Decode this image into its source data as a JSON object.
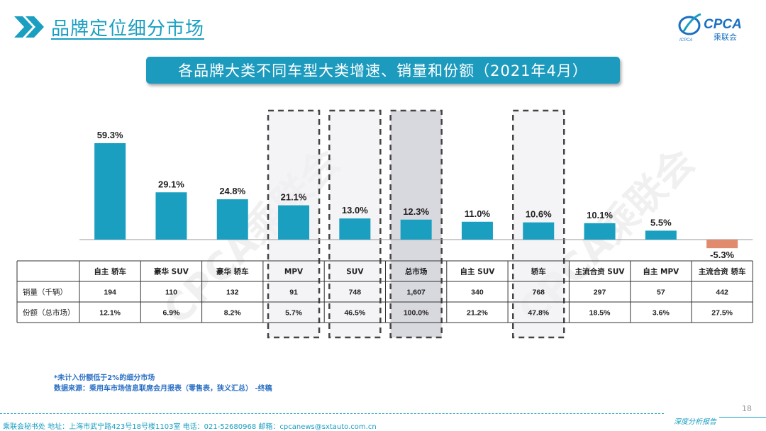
{
  "header": {
    "title": "品牌定位细分市场"
  },
  "logo": {
    "brand": "CPCA",
    "sub": "乘联会",
    "tag": "ICPCA"
  },
  "banner": {
    "title": "各品牌大类不同车型大类增速、销量和份额（2021年4月）"
  },
  "colors": {
    "accent": "#1c9bbe",
    "bar_positive": "#1a9fc1",
    "bar_negative": "#e08a6e",
    "highlight_fill": "#d4d4dc",
    "highlight_fill_light": "#f0f0f2"
  },
  "chart_data": {
    "type": "bar",
    "categories": [
      "自主 轿车",
      "豪华 SUV",
      "豪华 轿车",
      "MPV",
      "SUV",
      "总市场",
      "自主 SUV",
      "轿车",
      "主流合资 SUV",
      "自主 MPV",
      "主流合资 轿车"
    ],
    "values": [
      59.3,
      29.1,
      24.8,
      21.1,
      13.0,
      12.3,
      11.0,
      10.6,
      10.1,
      5.5,
      -5.3
    ],
    "value_labels": [
      "59.3%",
      "29.1%",
      "24.8%",
      "21.1%",
      "13.0%",
      "12.3%",
      "11.0%",
      "10.6%",
      "10.1%",
      "5.5%",
      "-5.3%"
    ],
    "highlighted": [
      "MPV",
      "SUV",
      "总市场",
      "轿车"
    ],
    "table": {
      "rows": [
        {
          "label": "销量（千辆）",
          "values": [
            "194",
            "110",
            "132",
            "91",
            "748",
            "1,607",
            "340",
            "768",
            "297",
            "57",
            "442"
          ]
        },
        {
          "label": "份额（总市场）",
          "values": [
            "12.1%",
            "6.9%",
            "8.2%",
            "5.7%",
            "46.5%",
            "100.0%",
            "21.2%",
            "47.8%",
            "18.5%",
            "3.6%",
            "27.5%"
          ]
        }
      ]
    },
    "ylim": [
      -5.3,
      59.3
    ]
  },
  "watermark": "CPCA乘联会",
  "notes": {
    "line1": "*未计入份额低于2%的细分市场",
    "line2": "数据来源：乘用车市场信息联席会月报表（零售表，狭义汇总）  -终稿"
  },
  "footer": {
    "address": "乘联会秘书处   地址：上海市武宁路423号18号楼1103室   电话：021-52680968   邮箱：cpcanews@sxtauto.com.cn",
    "report": "深度分析报告",
    "page": "18"
  }
}
